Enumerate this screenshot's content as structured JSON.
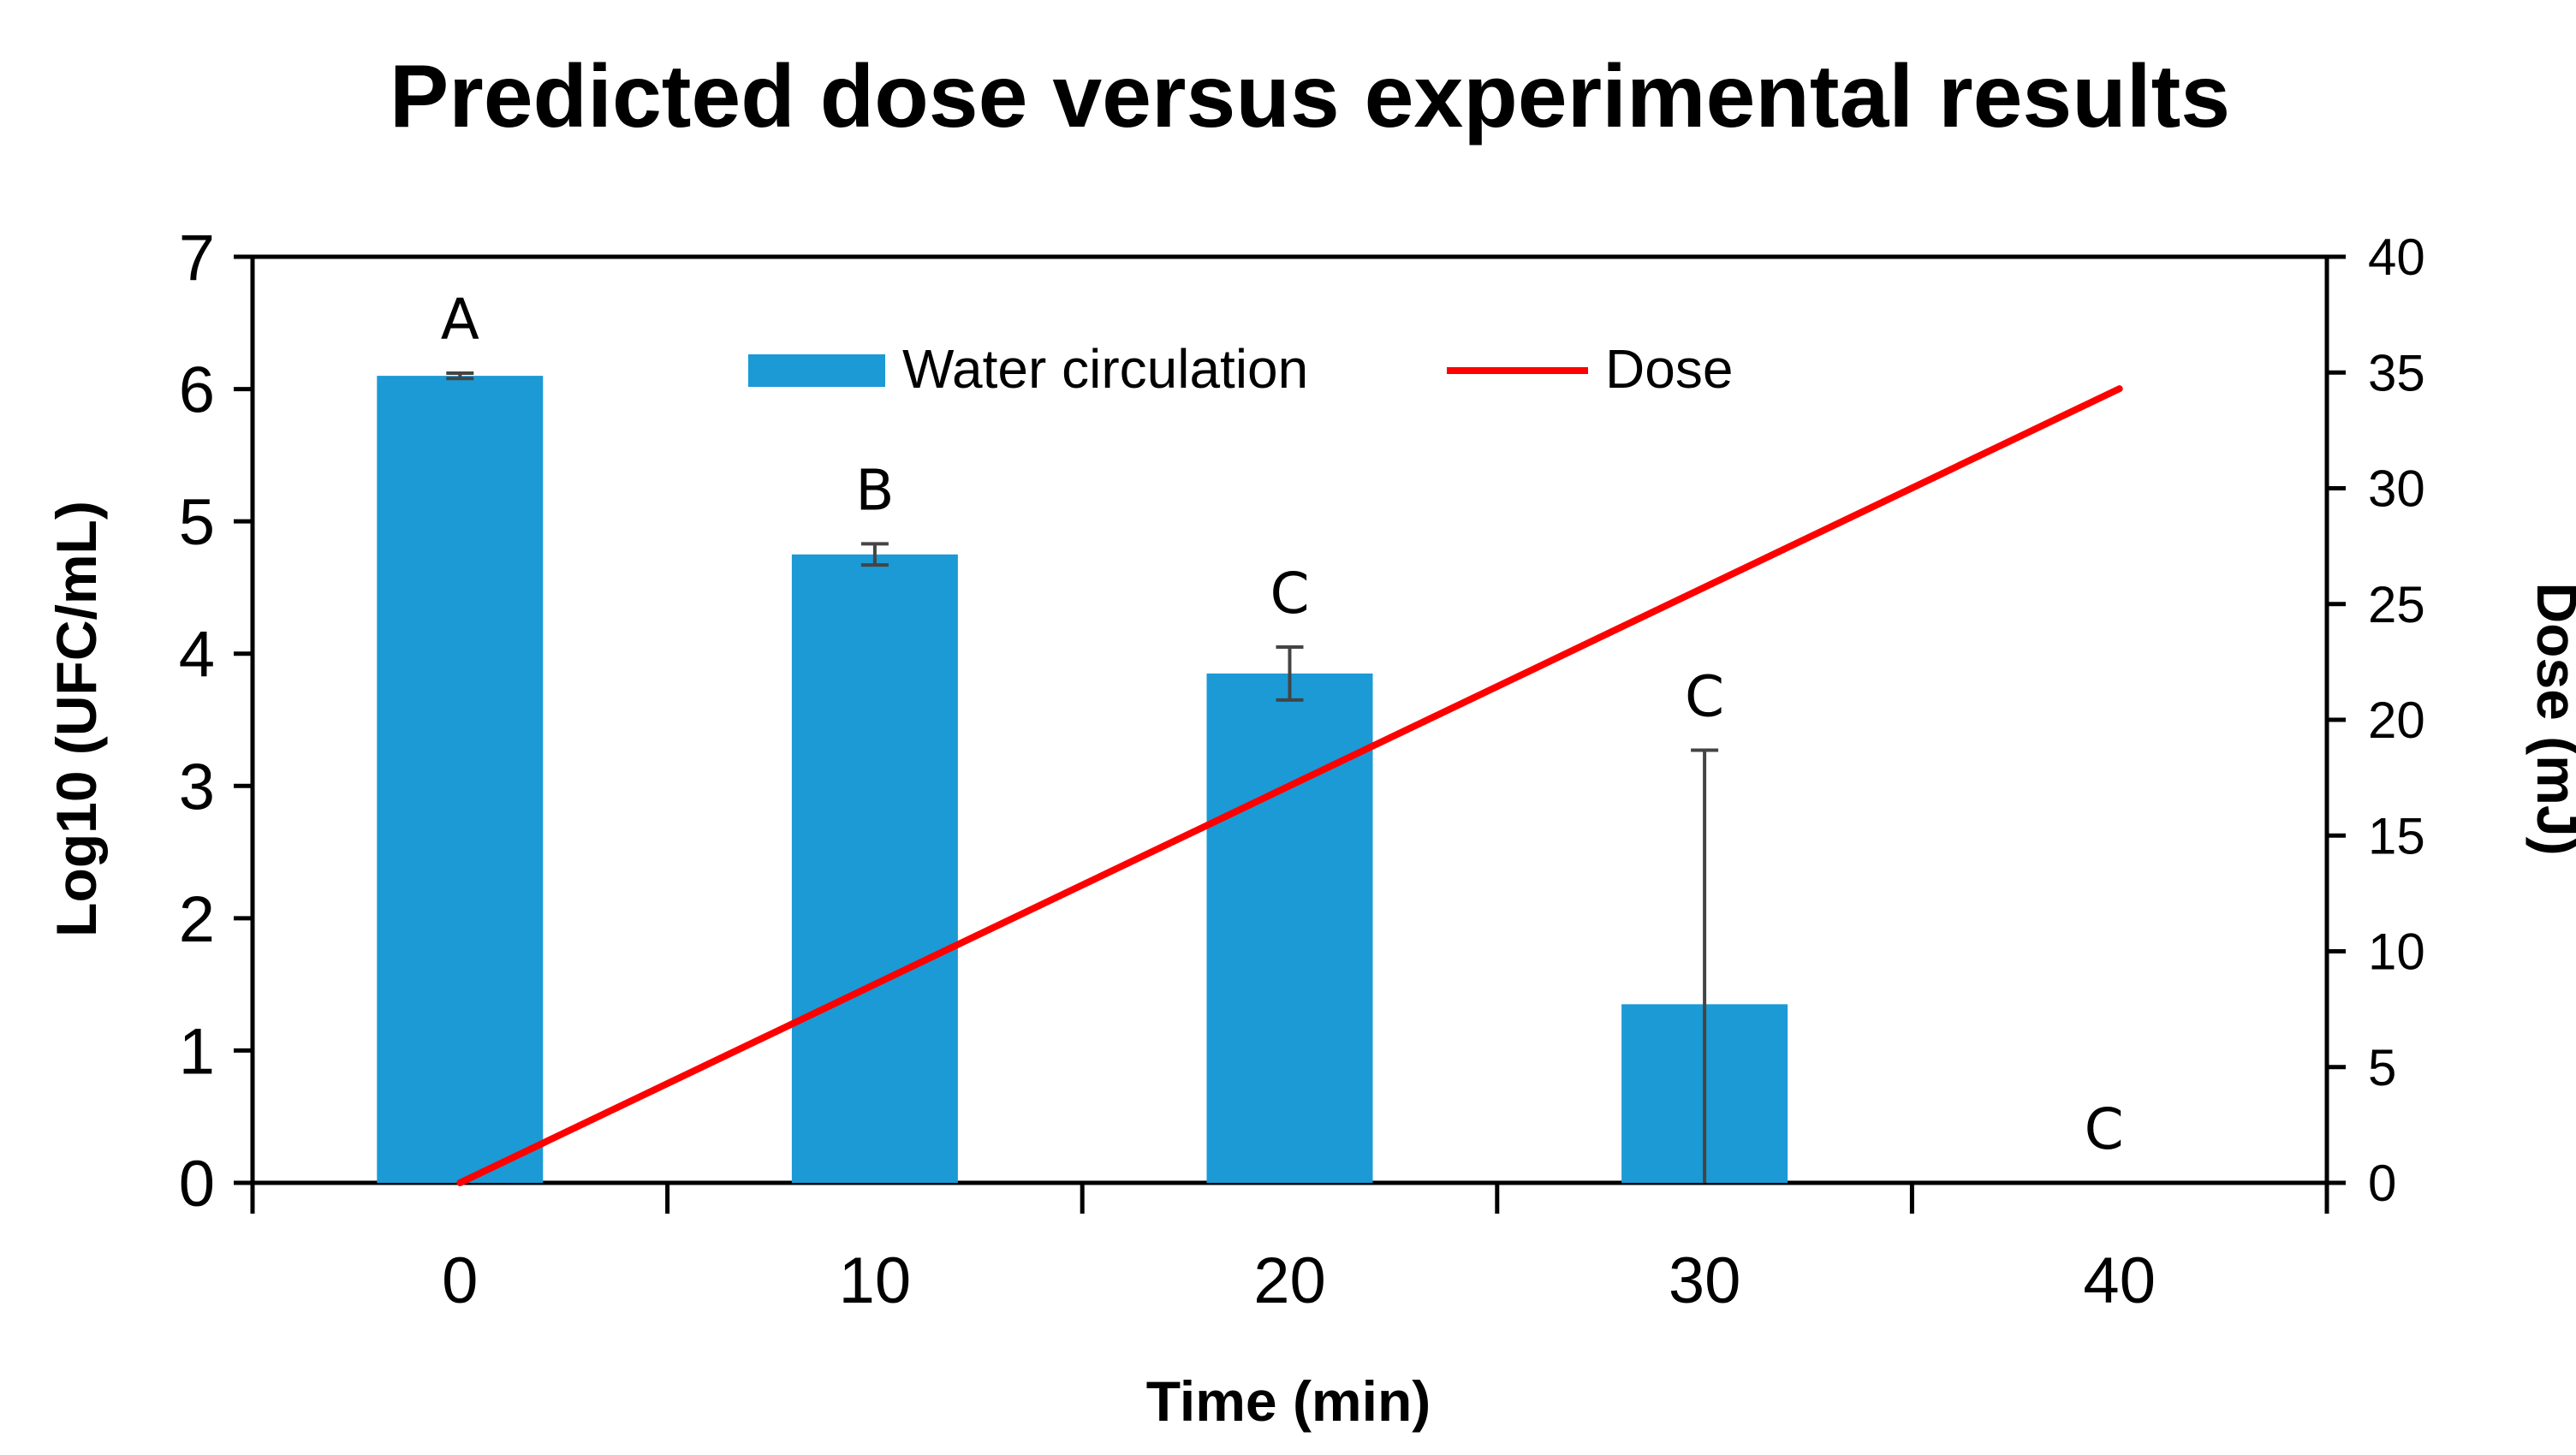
{
  "chart_data": {
    "type": "bar",
    "title": "Predicted dose versus experimental results",
    "xlabel": "Time (min)",
    "ylabel": "Log10 (UFC/mL)",
    "y2label": "Dose (mJ)",
    "categories": [
      "0",
      "10",
      "20",
      "30",
      "40"
    ],
    "x": [
      0,
      10,
      20,
      30,
      40
    ],
    "ylim": [
      0,
      7
    ],
    "y2lim": [
      0,
      40
    ],
    "yticks": [
      "0",
      "1",
      "2",
      "3",
      "4",
      "5",
      "6",
      "7"
    ],
    "y2ticks": [
      "0",
      "5",
      "10",
      "15",
      "20",
      "25",
      "30",
      "35",
      "40"
    ],
    "series": [
      {
        "name": "Water circulation",
        "type": "bar",
        "axis": "left",
        "color": "#1b9ad6",
        "values": [
          6.1,
          4.75,
          3.85,
          1.35,
          0
        ],
        "error": [
          0.02,
          0.08,
          0.2,
          1.92,
          0
        ],
        "letters": [
          "A",
          "B",
          "C",
          "C",
          "C"
        ]
      },
      {
        "name": "Dose",
        "type": "line",
        "axis": "right",
        "color": "#ff0000",
        "x": [
          0,
          40
        ],
        "values": [
          0,
          34.3
        ]
      }
    ],
    "legend": "top-center",
    "grid": false
  }
}
